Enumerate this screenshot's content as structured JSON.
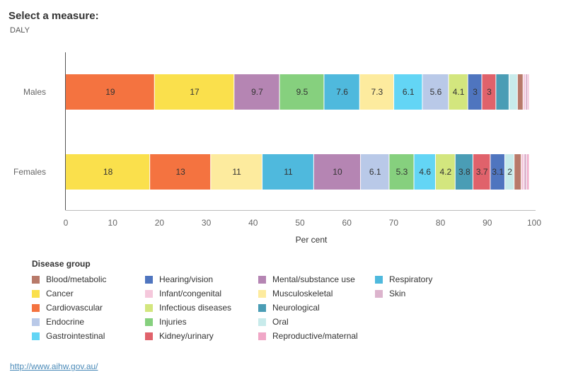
{
  "header": {
    "title": "Select a measure:",
    "measure": "DALY"
  },
  "chart_data": {
    "type": "bar",
    "orientation": "horizontal",
    "stacked": true,
    "title": "",
    "xlabel": "Per cent",
    "ylabel": "",
    "xlim": [
      0,
      100
    ],
    "x_ticks": [
      "0",
      "10",
      "20",
      "30",
      "40",
      "50",
      "60",
      "70",
      "80",
      "90",
      "100"
    ],
    "grid": false,
    "legend_position": "bottom",
    "categories": [
      "Males",
      "Females"
    ],
    "rows": [
      {
        "label": "Males",
        "segments": [
          {
            "group": "Cardiovascular",
            "value": 19,
            "label": "19"
          },
          {
            "group": "Cancer",
            "value": 17,
            "label": "17"
          },
          {
            "group": "Mental/substance use",
            "value": 9.7,
            "label": "9.7"
          },
          {
            "group": "Injuries",
            "value": 9.5,
            "label": "9.5"
          },
          {
            "group": "Respiratory",
            "value": 7.6,
            "label": "7.6"
          },
          {
            "group": "Musculoskeletal",
            "value": 7.3,
            "label": "7.3"
          },
          {
            "group": "Gastrointestinal",
            "value": 6.1,
            "label": "6.1"
          },
          {
            "group": "Endocrine",
            "value": 5.6,
            "label": "5.6"
          },
          {
            "group": "Infectious diseases",
            "value": 4.1,
            "label": "4.1"
          },
          {
            "group": "Hearing/vision",
            "value": 3,
            "label": "3"
          },
          {
            "group": "Kidney/urinary",
            "value": 3,
            "label": "3"
          },
          {
            "group": "Neurological",
            "value": 2.8,
            "label": ""
          },
          {
            "group": "Oral",
            "value": 1.8,
            "label": ""
          },
          {
            "group": "Blood/metabolic",
            "value": 1.2,
            "label": ""
          },
          {
            "group": "Infant/congenital",
            "value": 0.5,
            "label": ""
          },
          {
            "group": "Skin",
            "value": 0.5,
            "label": ""
          },
          {
            "group": "Reproductive/maternal",
            "value": 0.3,
            "label": ""
          }
        ]
      },
      {
        "label": "Females",
        "segments": [
          {
            "group": "Cancer",
            "value": 18,
            "label": "18"
          },
          {
            "group": "Cardiovascular",
            "value": 13,
            "label": "13"
          },
          {
            "group": "Musculoskeletal",
            "value": 11,
            "label": "11"
          },
          {
            "group": "Respiratory",
            "value": 11,
            "label": "11"
          },
          {
            "group": "Mental/substance use",
            "value": 10,
            "label": "10"
          },
          {
            "group": "Endocrine",
            "value": 6.1,
            "label": "6.1"
          },
          {
            "group": "Injuries",
            "value": 5.3,
            "label": "5.3"
          },
          {
            "group": "Gastrointestinal",
            "value": 4.6,
            "label": "4.6"
          },
          {
            "group": "Infectious diseases",
            "value": 4.2,
            "label": "4.2"
          },
          {
            "group": "Neurological",
            "value": 3.8,
            "label": "3.8"
          },
          {
            "group": "Kidney/urinary",
            "value": 3.7,
            "label": "3.7"
          },
          {
            "group": "Hearing/vision",
            "value": 3.1,
            "label": "3.1"
          },
          {
            "group": "Oral",
            "value": 2,
            "label": "2"
          },
          {
            "group": "Blood/metabolic",
            "value": 1.5,
            "label": ""
          },
          {
            "group": "Infant/congenital",
            "value": 0.6,
            "label": ""
          },
          {
            "group": "Skin",
            "value": 0.6,
            "label": ""
          },
          {
            "group": "Reproductive/maternal",
            "value": 0.5,
            "label": ""
          }
        ]
      }
    ],
    "colors": {
      "Blood/metabolic": "#b87a6a",
      "Cancer": "#fae04c",
      "Cardiovascular": "#f47340",
      "Endocrine": "#b9c9e8",
      "Gastrointestinal": "#63d5f5",
      "Hearing/vision": "#4f75bf",
      "Infant/congenital": "#f5c8dc",
      "Infectious diseases": "#d3e67e",
      "Injuries": "#86d07e",
      "Kidney/urinary": "#e0626b",
      "Mental/substance use": "#b585b3",
      "Musculoskeletal": "#fdeb9e",
      "Neurological": "#4a9db5",
      "Oral": "#c8ebeb",
      "Reproductive/maternal": "#f0a7c7",
      "Respiratory": "#4fb9dd",
      "Skin": "#dcb4cd"
    }
  },
  "legend": {
    "title": "Disease group",
    "columns": [
      [
        "Blood/metabolic",
        "Cancer",
        "Cardiovascular",
        "Endocrine",
        "Gastrointestinal"
      ],
      [
        "Hearing/vision",
        "Infant/congenital",
        "Infectious diseases",
        "Injuries",
        "Kidney/urinary"
      ],
      [
        "Mental/substance use",
        "Musculoskeletal",
        "Neurological",
        "Oral",
        "Reproductive/maternal"
      ],
      [
        "Respiratory",
        "Skin"
      ]
    ]
  },
  "footer": {
    "link": "http://www.aihw.gov.au/"
  }
}
